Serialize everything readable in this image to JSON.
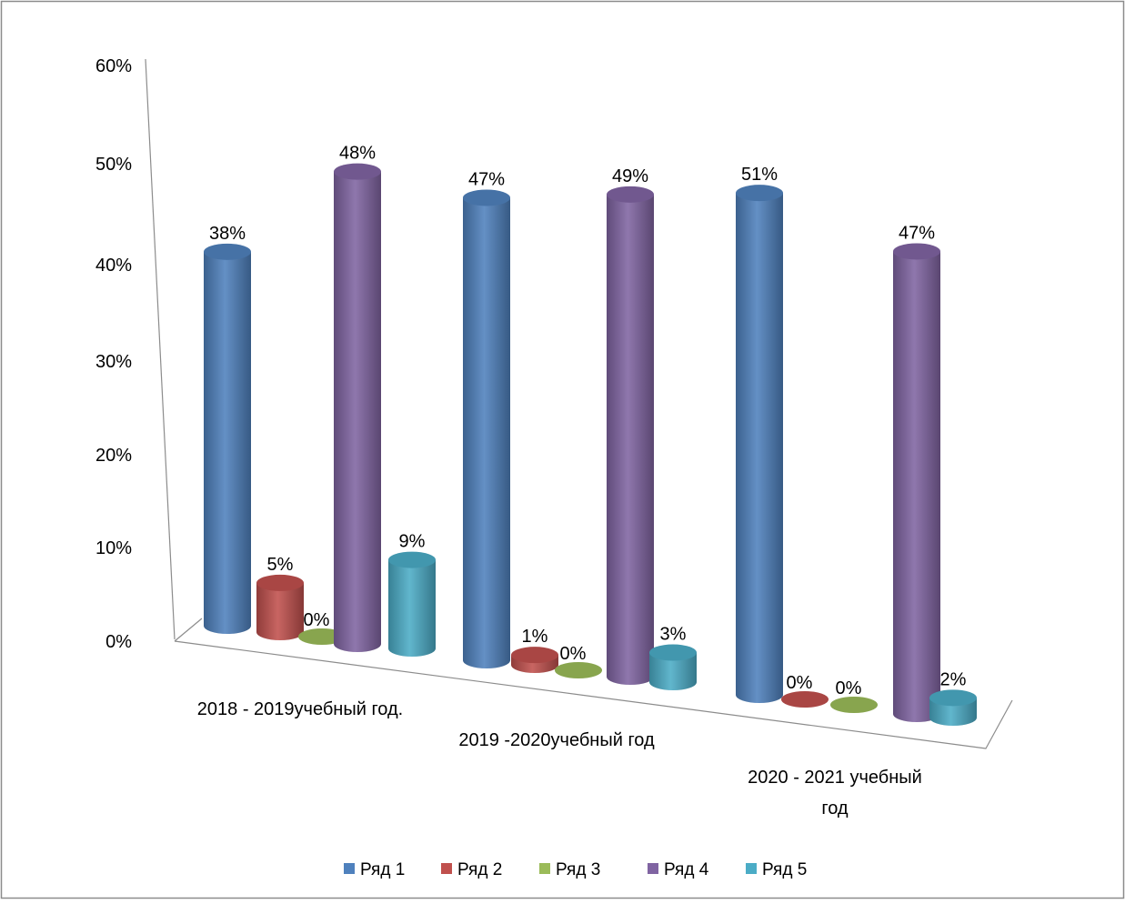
{
  "chart_data": {
    "type": "bar",
    "subtype": "3d-cylinder-clustered",
    "title": "",
    "xlabel": "",
    "ylabel": "",
    "categories": [
      "2018 - 2019учебный год.",
      "2019 -2020учебный год",
      "2020  - 2021 учебный год"
    ],
    "category_label_lines": [
      [
        "2018 - 2019учебный год."
      ],
      [
        "2019 -2020учебный год"
      ],
      [
        "2020  - 2021 учебный",
        "год"
      ]
    ],
    "y_ticks": [
      "0%",
      "10%",
      "20%",
      "30%",
      "40%",
      "50%",
      "60%"
    ],
    "ylim": [
      0,
      0.6
    ],
    "grid": false,
    "legend_position": "bottom",
    "series": [
      {
        "name": "Ряд 1",
        "color": "#4F81BD",
        "values": [
          0.38,
          0.47,
          0.51
        ],
        "labels": [
          "38%",
          "47%",
          "51%"
        ]
      },
      {
        "name": "Ряд 2",
        "color": "#C0504D",
        "values": [
          0.05,
          0.01,
          0.0
        ],
        "labels": [
          "5%",
          "1%",
          "0%"
        ]
      },
      {
        "name": "Ряд 3",
        "color": "#9BBB59",
        "values": [
          0.0,
          0.0,
          0.0
        ],
        "labels": [
          "0%",
          "0%",
          "0%"
        ]
      },
      {
        "name": "Ряд 4",
        "color": "#8064A2",
        "values": [
          0.48,
          0.49,
          0.47
        ],
        "labels": [
          "48%",
          "49%",
          "47%"
        ]
      },
      {
        "name": "Ряд 5",
        "color": "#4BACC6",
        "values": [
          0.09,
          0.03,
          0.02
        ],
        "labels": [
          "9%",
          "3%",
          "2%"
        ]
      }
    ]
  }
}
